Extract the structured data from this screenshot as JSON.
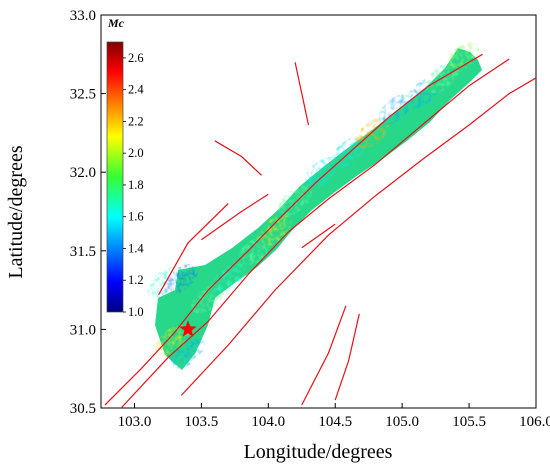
{
  "chart_data": {
    "type": "heatmap",
    "title": "",
    "xlabel": "Longitude/degrees",
    "ylabel": "Latitude/degrees",
    "xlim": [
      102.75,
      106.0
    ],
    "ylim": [
      30.5,
      33.0
    ],
    "x_ticks": [
      "103.0",
      "103.5",
      "104.0",
      "104.5",
      "105.0",
      "105.5",
      "106.0"
    ],
    "y_ticks": [
      "33.0",
      "32.5",
      "32.0",
      "31.5",
      "31.0",
      "30.5"
    ],
    "colorbar": {
      "title": "Mc",
      "min": 1.0,
      "max": 2.7,
      "ticks": [
        "2.6",
        "2.4",
        "2.2",
        "2.0",
        "1.8",
        "1.6",
        "1.4",
        "1.2",
        "1.0"
      ]
    },
    "epicenter": {
      "lon": 103.4,
      "lat": 31.0,
      "marker": "star",
      "color": "#ff0000"
    },
    "value_regions": [
      {
        "lon": 103.22,
        "lat": 31.3,
        "mc": 1.7
      },
      {
        "lon": 103.35,
        "lat": 31.32,
        "mc": 1.4
      },
      {
        "lon": 103.28,
        "lat": 30.93,
        "mc": 2.1
      },
      {
        "lon": 103.4,
        "lat": 30.85,
        "mc": 1.5
      },
      {
        "lon": 103.55,
        "lat": 31.2,
        "mc": 1.8
      },
      {
        "lon": 103.7,
        "lat": 31.32,
        "mc": 1.7
      },
      {
        "lon": 103.9,
        "lat": 31.5,
        "mc": 1.8
      },
      {
        "lon": 104.05,
        "lat": 31.63,
        "mc": 2.1
      },
      {
        "lon": 104.2,
        "lat": 31.82,
        "mc": 1.8
      },
      {
        "lon": 104.4,
        "lat": 32.0,
        "mc": 1.6
      },
      {
        "lon": 104.6,
        "lat": 32.13,
        "mc": 1.6
      },
      {
        "lon": 104.78,
        "lat": 32.25,
        "mc": 2.2
      },
      {
        "lon": 104.95,
        "lat": 32.4,
        "mc": 1.5
      },
      {
        "lon": 105.15,
        "lat": 32.5,
        "mc": 1.5
      },
      {
        "lon": 105.3,
        "lat": 32.6,
        "mc": 1.8
      },
      {
        "lon": 105.45,
        "lat": 32.73,
        "mc": 1.9
      }
    ],
    "faults": [
      [
        [
          102.78,
          30.52
        ],
        [
          103.05,
          30.75
        ],
        [
          103.3,
          30.98
        ],
        [
          103.55,
          31.25
        ],
        [
          103.85,
          31.5
        ],
        [
          104.1,
          31.72
        ],
        [
          104.35,
          31.93
        ],
        [
          104.6,
          32.12
        ],
        [
          104.9,
          32.35
        ],
        [
          105.2,
          32.55
        ],
        [
          105.6,
          32.75
        ]
      ],
      [
        [
          102.9,
          30.5
        ],
        [
          103.25,
          30.82
        ],
        [
          103.55,
          31.05
        ],
        [
          103.85,
          31.35
        ],
        [
          104.15,
          31.62
        ],
        [
          104.45,
          31.83
        ],
        [
          104.8,
          32.05
        ],
        [
          105.15,
          32.3
        ],
        [
          105.5,
          32.55
        ],
        [
          105.8,
          32.72
        ]
      ],
      [
        [
          103.35,
          30.58
        ],
        [
          103.7,
          30.9
        ],
        [
          104.05,
          31.25
        ],
        [
          104.45,
          31.6
        ],
        [
          104.8,
          31.85
        ],
        [
          105.15,
          32.08
        ],
        [
          105.5,
          32.3
        ],
        [
          105.8,
          32.5
        ],
        [
          106.0,
          32.6
        ]
      ],
      [
        [
          104.25,
          30.52
        ],
        [
          104.45,
          30.85
        ],
        [
          104.58,
          31.15
        ]
      ],
      [
        [
          104.5,
          30.55
        ],
        [
          104.6,
          30.8
        ],
        [
          104.68,
          31.1
        ]
      ],
      [
        [
          104.25,
          31.52
        ],
        [
          104.5,
          31.67
        ]
      ],
      [
        [
          103.18,
          31.22
        ],
        [
          103.4,
          31.55
        ],
        [
          103.7,
          31.8
        ]
      ],
      [
        [
          103.5,
          31.57
        ],
        [
          103.8,
          31.75
        ],
        [
          104.0,
          31.86
        ]
      ],
      [
        [
          103.6,
          32.2
        ],
        [
          103.8,
          32.1
        ],
        [
          103.95,
          31.98
        ]
      ],
      [
        [
          104.2,
          32.7
        ],
        [
          104.25,
          32.5
        ],
        [
          104.3,
          32.3
        ]
      ]
    ]
  }
}
